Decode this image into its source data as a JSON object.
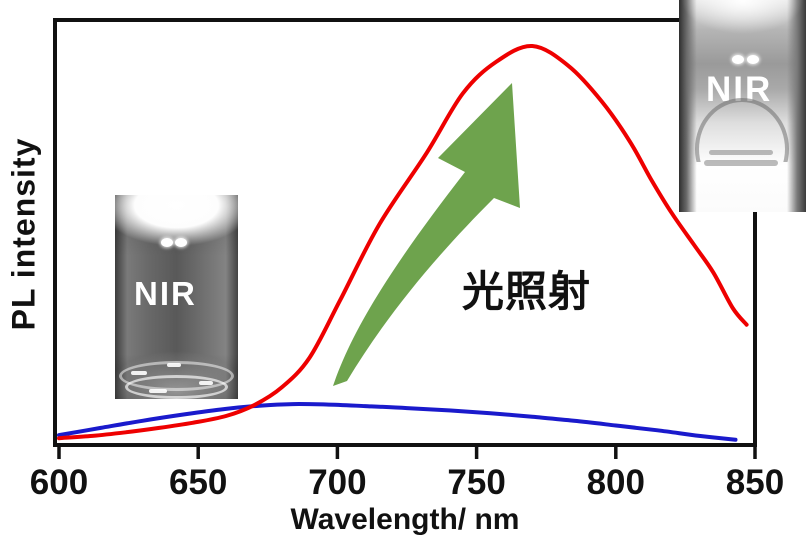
{
  "chart": {
    "y_axis_label": "PL intensity",
    "x_axis_label": "Wavelength/ nm",
    "annotation_text": "光照射",
    "inset_left": {
      "label": "NIR"
    },
    "inset_right": {
      "label": "NIR"
    }
  },
  "colors": {
    "axis": "#111111",
    "red_curve": "#ee0000",
    "blue_curve": "#1a1acc",
    "arrow_green": "#6ea34d"
  },
  "chart_data": {
    "type": "line",
    "title": "",
    "xlabel": "Wavelength/ nm",
    "ylabel": "PL intensity",
    "xlim": [
      600,
      850
    ],
    "ylim": [
      0,
      1.07
    ],
    "x_ticks": [
      600,
      650,
      700,
      750,
      800,
      850
    ],
    "y_ticks": [],
    "grid": false,
    "legend": "none",
    "series": [
      {
        "name": "red-curve",
        "color": "#ee0000",
        "peak_nm": 770,
        "points": [
          [
            600,
            0.012
          ],
          [
            612,
            0.018
          ],
          [
            624,
            0.027
          ],
          [
            636,
            0.038
          ],
          [
            648,
            0.051
          ],
          [
            660,
            0.068
          ],
          [
            670,
            0.095
          ],
          [
            680,
            0.14
          ],
          [
            690,
            0.215
          ],
          [
            701,
            0.36
          ],
          [
            715,
            0.55
          ],
          [
            732,
            0.73
          ],
          [
            745,
            0.88
          ],
          [
            757,
            0.96
          ],
          [
            770,
            1.0
          ],
          [
            783,
            0.95
          ],
          [
            795,
            0.86
          ],
          [
            805,
            0.76
          ],
          [
            813,
            0.66
          ],
          [
            820,
            0.58
          ],
          [
            828,
            0.5
          ],
          [
            835,
            0.43
          ],
          [
            842,
            0.34
          ],
          [
            847,
            0.298
          ]
        ]
      },
      {
        "name": "blue-curve",
        "color": "#1a1acc",
        "peak_nm": 684,
        "points": [
          [
            600,
            0.02
          ],
          [
            615,
            0.038
          ],
          [
            630,
            0.056
          ],
          [
            645,
            0.072
          ],
          [
            660,
            0.086
          ],
          [
            672,
            0.094
          ],
          [
            684,
            0.098
          ],
          [
            696,
            0.097
          ],
          [
            710,
            0.093
          ],
          [
            725,
            0.088
          ],
          [
            740,
            0.082
          ],
          [
            755,
            0.075
          ],
          [
            770,
            0.066
          ],
          [
            785,
            0.056
          ],
          [
            800,
            0.044
          ],
          [
            815,
            0.032
          ],
          [
            830,
            0.018
          ],
          [
            843,
            0.008
          ]
        ]
      }
    ],
    "annotations": [
      {
        "text": "光照射",
        "shape": "green-curved-arrow",
        "color": "#6ea34d"
      }
    ]
  }
}
